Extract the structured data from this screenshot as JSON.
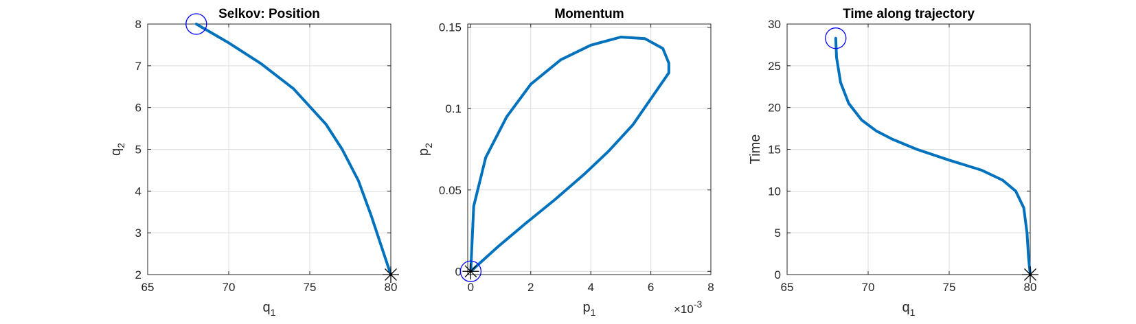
{
  "colors": {
    "line": "#0072BD",
    "start_marker": "#0000FF",
    "end_marker": "#000000"
  },
  "chart_data": [
    {
      "type": "line",
      "title": "Selkov: Position",
      "xlabel": "q",
      "xlabel_sub": "1",
      "ylabel": "q",
      "ylabel_sub": "2",
      "xlim": [
        65,
        80
      ],
      "ylim": [
        2,
        8
      ],
      "xticks": [
        65,
        70,
        75,
        80
      ],
      "yticks": [
        2,
        3,
        4,
        5,
        6,
        7,
        8
      ],
      "grid": true,
      "series": [
        {
          "values": [
            [
              68,
              8
            ],
            [
              70,
              7.55
            ],
            [
              72,
              7.05
            ],
            [
              74,
              6.45
            ],
            [
              76,
              5.6
            ],
            [
              77,
              5.0
            ],
            [
              78,
              4.25
            ],
            [
              78.8,
              3.4
            ],
            [
              79.4,
              2.7
            ],
            [
              80,
              2
            ]
          ]
        }
      ],
      "start_marker": {
        "shape": "circle",
        "point": [
          68,
          8
        ]
      },
      "end_marker": {
        "shape": "star",
        "point": [
          80,
          2
        ]
      }
    },
    {
      "type": "line",
      "title": "Momentum",
      "xlabel": "p",
      "xlabel_sub": "1",
      "ylabel": "p",
      "ylabel_sub": "2",
      "x_multiplier": "×10",
      "x_multiplier_exp": "-3",
      "xlim": [
        -0.0001,
        0.008
      ],
      "ylim": [
        -0.002,
        0.152
      ],
      "xticks": [
        0,
        0.002,
        0.004,
        0.006,
        0.008
      ],
      "xticklabels": [
        "0",
        "2",
        "4",
        "6",
        "8"
      ],
      "yticks": [
        0,
        0.05,
        0.1,
        0.15
      ],
      "yticklabels": [
        "0",
        "0.05",
        "0.1",
        "0.15"
      ],
      "grid": true,
      "series": [
        {
          "values": [
            [
              0,
              0
            ],
            [
              0.0001,
              0.04
            ],
            [
              0.0005,
              0.07
            ],
            [
              0.0012,
              0.095
            ],
            [
              0.002,
              0.115
            ],
            [
              0.003,
              0.13
            ],
            [
              0.004,
              0.139
            ],
            [
              0.005,
              0.144
            ],
            [
              0.0058,
              0.143
            ],
            [
              0.0064,
              0.137
            ],
            [
              0.0066,
              0.128
            ],
            [
              0.0066,
              0.122
            ],
            [
              0.006,
              0.106
            ],
            [
              0.0054,
              0.09
            ],
            [
              0.0046,
              0.074
            ],
            [
              0.0038,
              0.06
            ],
            [
              0.0028,
              0.044
            ],
            [
              0.0018,
              0.029
            ],
            [
              0.0009,
              0.015
            ],
            [
              0.0003,
              0.005
            ],
            [
              0,
              0
            ]
          ]
        }
      ],
      "start_marker": {
        "shape": "circle",
        "point": [
          0,
          0
        ]
      },
      "end_marker": {
        "shape": "star",
        "point": [
          0,
          0
        ]
      }
    },
    {
      "type": "line",
      "title": "Time along trajectory",
      "xlabel": "q",
      "xlabel_sub": "1",
      "ylabel": "Time",
      "xlim": [
        65,
        80
      ],
      "ylim": [
        0,
        30
      ],
      "xticks": [
        65,
        70,
        75,
        80
      ],
      "yticks": [
        0,
        5,
        10,
        15,
        20,
        25,
        30
      ],
      "grid": true,
      "series": [
        {
          "values": [
            [
              68,
              28.3
            ],
            [
              68.05,
              26
            ],
            [
              68.3,
              23
            ],
            [
              68.8,
              20.5
            ],
            [
              69.6,
              18.5
            ],
            [
              70.5,
              17.2
            ],
            [
              71.5,
              16.2
            ],
            [
              73,
              15
            ],
            [
              75,
              13.7
            ],
            [
              77,
              12.5
            ],
            [
              78.3,
              11.3
            ],
            [
              79.1,
              10
            ],
            [
              79.6,
              8
            ],
            [
              79.8,
              5
            ],
            [
              79.9,
              2
            ],
            [
              80,
              0
            ]
          ]
        }
      ],
      "start_marker": {
        "shape": "circle",
        "point": [
          68,
          28.3
        ]
      },
      "end_marker": {
        "shape": "star",
        "point": [
          80,
          0
        ]
      }
    }
  ]
}
